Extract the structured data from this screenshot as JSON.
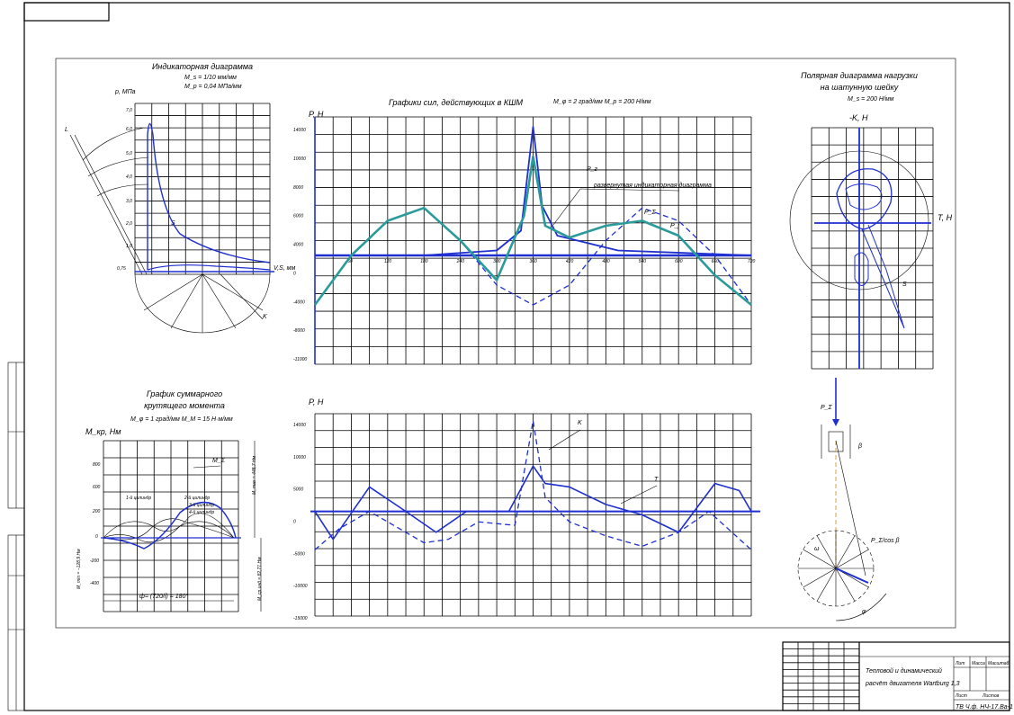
{
  "indicator": {
    "title": "Индикаторная диаграмма",
    "scale1": "M_s = 1/10 мм/мм",
    "scale2": "M_p = 0,04 МПа/мм",
    "yaxis": "p, МПа",
    "xaxis": "V,S, мм",
    "labels": [
      "L",
      "S",
      "K"
    ],
    "yticks": [
      "7,0",
      "6,0",
      "5,0",
      "4,0",
      "3,0",
      "2,0",
      "1,0",
      "0,75"
    ]
  },
  "forces": {
    "title": "Графики сил, действующих в КШМ",
    "scale": "M_φ = 2 град/мм   M_p = 200 Н/мм",
    "yaxis": "P, Н",
    "labels": [
      "P_г",
      "P_j",
      "P_Σ",
      "развернутая индикаторная диаграмма"
    ],
    "yticks": [
      "14000",
      "10000",
      "8000",
      "6000",
      "4000",
      "0",
      "-4000",
      "-8000",
      "-11000"
    ],
    "xticks": [
      "60",
      "120",
      "180",
      "240",
      "300",
      "360",
      "420",
      "480",
      "540",
      "600",
      "660",
      "720"
    ]
  },
  "polar": {
    "title1": "Полярная диаграмма нагрузки",
    "title2": "на шатунную шейку",
    "scale": "M_s = 200 Н/мм",
    "yaxis": "-K, Н",
    "xaxis": "T, Н",
    "label": "S"
  },
  "torque": {
    "title1": "График суммарного",
    "title2": "крутящего момента",
    "scale": "M_φ = 1 град/мм   M_M = 15 Н·м/мм",
    "yaxis": "M_кр, Нм",
    "labels": [
      "M_Σ",
      "1-й цилиндр",
      "2-й цилиндр",
      "3-й цилиндр",
      "4-й цилиндр"
    ],
    "side1": "M_max = 448,7 Нм",
    "side2": "M_min = −128,9 Нм",
    "side3": "M_ср.инд = 82,71 Нм",
    "xspan": "ф= (720/i) = 180°",
    "yticks": [
      "800",
      "600",
      "200",
      "0",
      "-200",
      "-400",
      "-600"
    ]
  },
  "tk": {
    "yaxis": "P, Н",
    "labels": [
      "K",
      "T"
    ],
    "yticks": [
      "14000",
      "10000",
      "5000",
      "0",
      "-5000",
      "-10000",
      "-15000"
    ]
  },
  "mechanism": {
    "labels": [
      "P_Σ",
      "β",
      "P_Σ/cos β",
      "ω",
      "φ"
    ]
  },
  "stamp": {
    "title1": "Тепловой и динамический",
    "title2": "расчёт двигателя Wartburg 1,3",
    "code": "ТВ Ч.ф. НЧ-17.Ва-1",
    "headers": [
      "Лит",
      "Масса",
      "Масштаб"
    ],
    "sheet": "Лист",
    "sheets": "Листов"
  },
  "chart_data": [
    {
      "type": "line",
      "title": "Графики сил, действующих в КШМ",
      "xlabel": "φ, град",
      "ylabel": "P, Н",
      "xlim": [
        0,
        720
      ],
      "ylim": [
        -11000,
        14000
      ],
      "series": [
        {
          "name": "P_г",
          "x": [
            0,
            180,
            300,
            340,
            360,
            375,
            400,
            500,
            720
          ],
          "values": [
            0,
            0,
            500,
            2500,
            13000,
            5000,
            2000,
            500,
            0
          ]
        },
        {
          "name": "P_j",
          "x": [
            0,
            60,
            120,
            180,
            240,
            300,
            360,
            420,
            480,
            540,
            600,
            660,
            720
          ],
          "values": [
            -5000,
            0,
            3500,
            4800,
            1500,
            -3000,
            -5000,
            -3000,
            1500,
            4800,
            3500,
            0,
            -5000
          ]
        },
        {
          "name": "P_Σ",
          "x": [
            0,
            60,
            120,
            180,
            240,
            300,
            345,
            360,
            380,
            420,
            480,
            540,
            600,
            660,
            720
          ],
          "values": [
            -5000,
            0,
            3500,
            4800,
            1500,
            -2500,
            4000,
            10000,
            3000,
            1800,
            3000,
            3500,
            2000,
            -2000,
            -5000
          ]
        }
      ]
    },
    {
      "type": "line",
      "xlabel": "φ, град",
      "ylabel": "P, Н",
      "xlim": [
        0,
        720
      ],
      "ylim": [
        -15000,
        14000
      ],
      "series": [
        {
          "name": "K",
          "x": [
            0,
            40,
            90,
            180,
            220,
            270,
            330,
            360,
            380,
            420,
            480,
            540,
            600,
            650,
            720
          ],
          "values": [
            -5500,
            -2500,
            0,
            -4500,
            -4000,
            -1500,
            -2000,
            13000,
            2000,
            -1500,
            -3500,
            -5000,
            -3000,
            0,
            -5500
          ]
        },
        {
          "name": "T",
          "x": [
            0,
            30,
            90,
            150,
            200,
            250,
            320,
            360,
            380,
            420,
            480,
            540,
            600,
            660,
            700,
            720
          ],
          "values": [
            0,
            -4000,
            3500,
            0,
            -3000,
            0,
            0,
            6500,
            4000,
            3500,
            1000,
            -500,
            -3000,
            4000,
            3000,
            0
          ]
        }
      ]
    }
  ]
}
